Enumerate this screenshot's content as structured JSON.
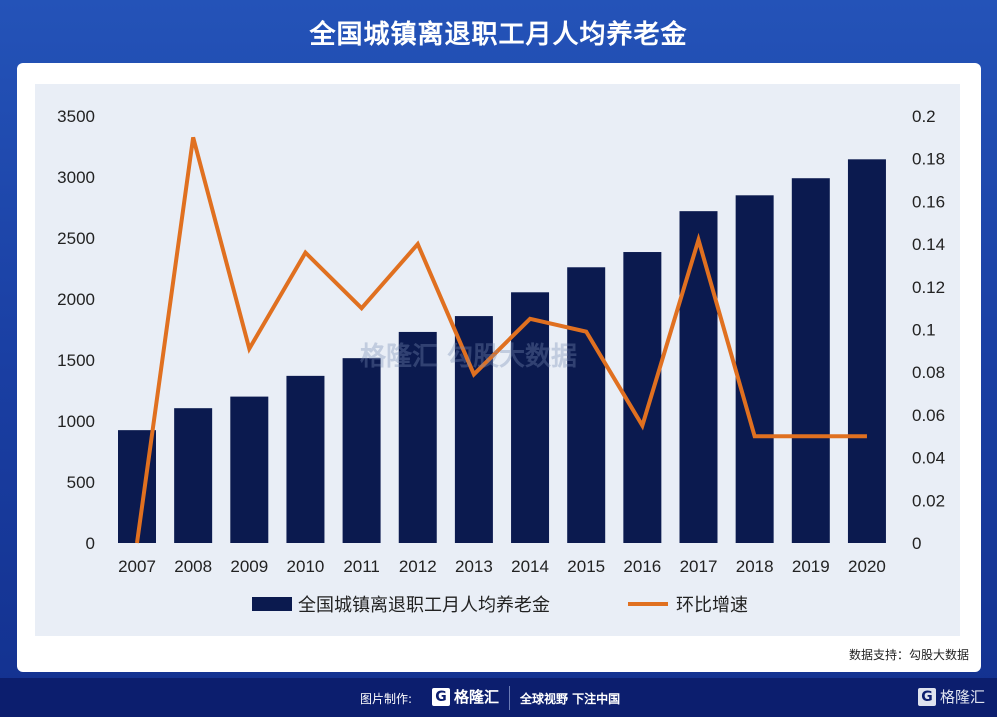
{
  "title": "全国城镇离退职工月人均养老金",
  "source": "数据支持：勾股大数据",
  "watermark": "格隆汇   勾股大数据",
  "footer": {
    "made_by": "图片制作:",
    "logo": "格隆汇",
    "slogan": "全球视野 下注中国",
    "right_logo": "格隆汇"
  },
  "chart_data": {
    "type": "bar",
    "title": "全国城镇离退职工月人均养老金",
    "categories": [
      "2007",
      "2008",
      "2009",
      "2010",
      "2011",
      "2012",
      "2013",
      "2014",
      "2015",
      "2016",
      "2017",
      "2018",
      "2019",
      "2020"
    ],
    "series": [
      {
        "name": "全国城镇离退职工月人均养老金",
        "type": "bar",
        "axis": "left",
        "color": "#0b1a4f",
        "values": [
          925,
          1105,
          1200,
          1370,
          1515,
          1730,
          1860,
          2055,
          2260,
          2385,
          2720,
          2850,
          2990,
          3145
        ]
      },
      {
        "name": "环比增速",
        "type": "line",
        "axis": "right",
        "color": "#e07020",
        "values": [
          0,
          0.19,
          0.091,
          0.136,
          0.11,
          0.14,
          0.079,
          0.105,
          0.099,
          0.055,
          0.142,
          0.05,
          0.05,
          0.05
        ]
      }
    ],
    "yleft": {
      "min": 0,
      "max": 3500,
      "ticks": [
        "0",
        "500",
        "1000",
        "1500",
        "2000",
        "2500",
        "3000",
        "3500"
      ]
    },
    "yright": {
      "min": 0,
      "max": 0.2,
      "ticks": [
        "0",
        "0.02",
        "0.04",
        "0.06",
        "0.08",
        "0.1",
        "0.12",
        "0.14",
        "0.16",
        "0.18",
        "0.2"
      ]
    },
    "legend": "bottom",
    "grid": false
  }
}
